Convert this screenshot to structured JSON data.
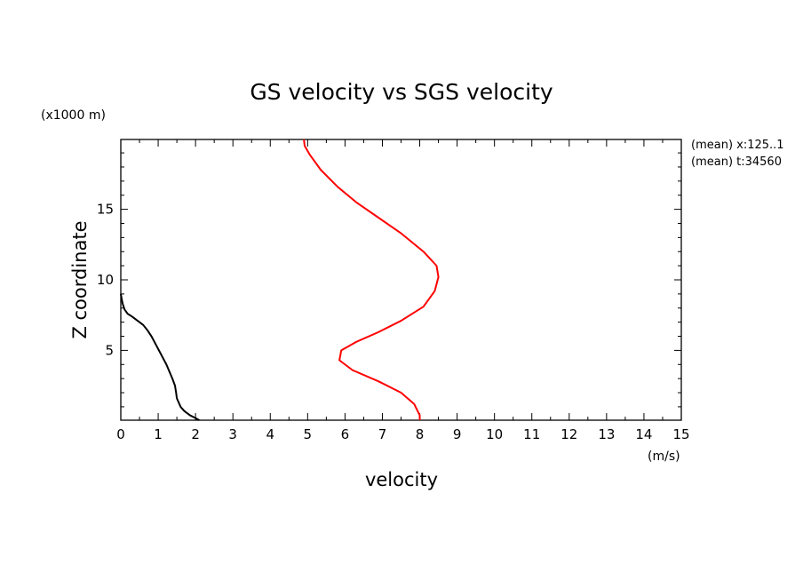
{
  "chart_data": {
    "type": "line",
    "title": "GS velocity vs SGS velocity",
    "xlabel": "velocity",
    "x_unit": "(m/s)",
    "ylabel": "Z coordinate",
    "y_unit": "(x1000 m)",
    "xlim": [
      0,
      15
    ],
    "ylim": [
      0.05,
      19.95
    ],
    "x_ticks": [
      0,
      1,
      2,
      3,
      4,
      5,
      6,
      7,
      8,
      9,
      10,
      11,
      12,
      13,
      14,
      15
    ],
    "y_ticks": [
      5,
      10,
      15
    ],
    "annotations": [
      "(mean) x:125..1",
      "(mean) t:34560"
    ],
    "grid": false,
    "series": [
      {
        "color": "#000000",
        "points": [
          [
            2.1,
            0.05
          ],
          [
            2.0,
            0.2
          ],
          [
            1.85,
            0.4
          ],
          [
            1.7,
            0.7
          ],
          [
            1.6,
            1.0
          ],
          [
            1.55,
            1.3
          ],
          [
            1.5,
            1.6
          ],
          [
            1.48,
            2.0
          ],
          [
            1.45,
            2.5
          ],
          [
            1.38,
            3.0
          ],
          [
            1.3,
            3.5
          ],
          [
            1.22,
            4.0
          ],
          [
            1.12,
            4.5
          ],
          [
            1.02,
            5.0
          ],
          [
            0.92,
            5.5
          ],
          [
            0.82,
            6.0
          ],
          [
            0.72,
            6.4
          ],
          [
            0.6,
            6.8
          ],
          [
            0.45,
            7.1
          ],
          [
            0.3,
            7.4
          ],
          [
            0.18,
            7.6
          ],
          [
            0.1,
            7.9
          ],
          [
            0.05,
            8.3
          ],
          [
            0.02,
            8.7
          ],
          [
            0.0,
            9.0
          ]
        ]
      },
      {
        "color": "#ff0000",
        "points": [
          [
            8.0,
            0.05
          ],
          [
            8.0,
            0.4
          ],
          [
            7.85,
            1.2
          ],
          [
            7.5,
            2.0
          ],
          [
            6.9,
            2.8
          ],
          [
            6.2,
            3.6
          ],
          [
            5.85,
            4.3
          ],
          [
            5.9,
            5.0
          ],
          [
            6.3,
            5.6
          ],
          [
            6.9,
            6.3
          ],
          [
            7.5,
            7.1
          ],
          [
            8.1,
            8.1
          ],
          [
            8.4,
            9.2
          ],
          [
            8.5,
            10.2
          ],
          [
            8.45,
            11.0
          ],
          [
            8.1,
            12.0
          ],
          [
            7.5,
            13.3
          ],
          [
            6.9,
            14.4
          ],
          [
            6.3,
            15.5
          ],
          [
            5.8,
            16.6
          ],
          [
            5.35,
            17.8
          ],
          [
            5.05,
            18.9
          ],
          [
            4.92,
            19.5
          ],
          [
            4.9,
            19.95
          ]
        ]
      }
    ]
  }
}
